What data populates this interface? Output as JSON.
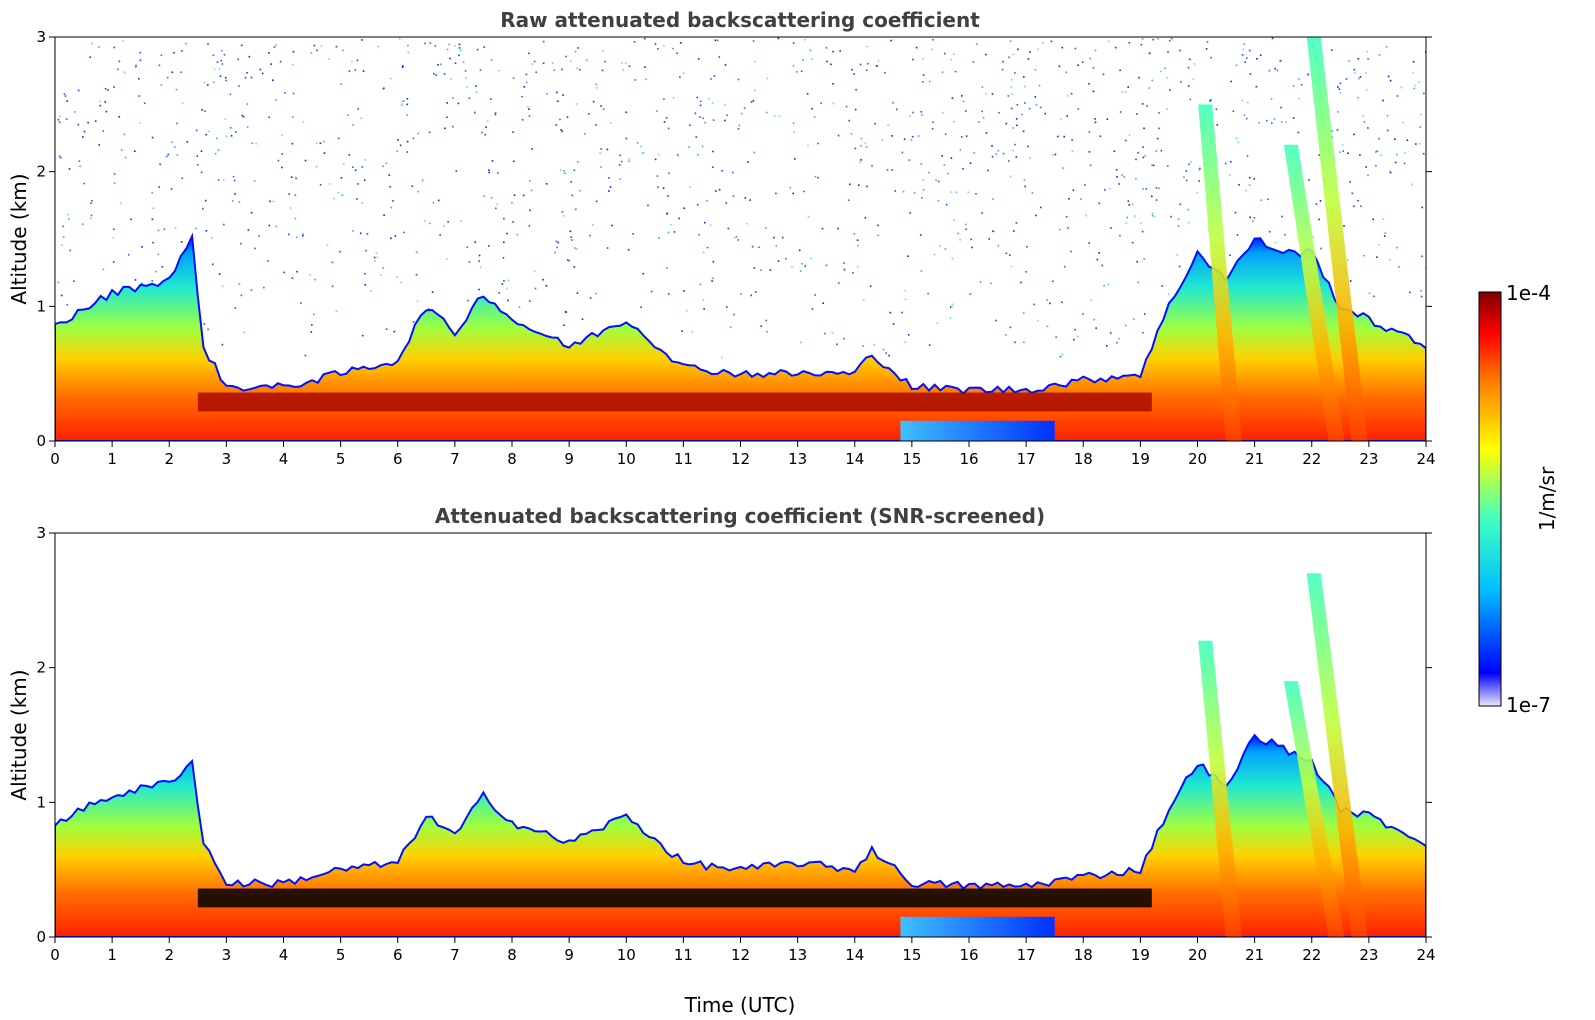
{
  "chart_data": [
    {
      "type": "heatmap",
      "title": "Raw attenuated backscattering coefficient",
      "xlabel": "",
      "ylabel": "Altitude (km)",
      "xlim": [
        0,
        24
      ],
      "ylim": [
        0,
        3
      ],
      "xticks": [
        "0",
        "1",
        "2",
        "3",
        "4",
        "5",
        "6",
        "7",
        "8",
        "9",
        "10",
        "11",
        "12",
        "13",
        "14",
        "15",
        "16",
        "17",
        "18",
        "19",
        "20",
        "21",
        "22",
        "23",
        "24"
      ],
      "yticks": [
        "0",
        "1",
        "2",
        "3"
      ],
      "screened": false,
      "cloud_top_km": {
        "time_utc": [
          0,
          1,
          2,
          2.4,
          2.6,
          3,
          4,
          5,
          6,
          6.5,
          7,
          7.5,
          8,
          9,
          10,
          11,
          12,
          13,
          14,
          14.3,
          15,
          16,
          17,
          18,
          19,
          19.5,
          20,
          20.5,
          21,
          21.5,
          22,
          22.5,
          23,
          24
        ],
        "altitude_km": [
          0.85,
          1.1,
          1.2,
          1.5,
          0.7,
          0.4,
          0.4,
          0.5,
          0.6,
          1.0,
          0.8,
          1.1,
          0.9,
          0.7,
          0.9,
          0.55,
          0.5,
          0.5,
          0.5,
          0.65,
          0.4,
          0.38,
          0.38,
          0.45,
          0.5,
          1.0,
          1.4,
          1.2,
          1.5,
          1.4,
          1.4,
          1.0,
          0.9,
          0.7
        ]
      },
      "dense_layer_km": {
        "start_utc": 2.5,
        "end_utc": 19.2,
        "altitude_km": 0.3
      },
      "low_signal_region": {
        "start_utc": 14.8,
        "end_utc": 17.5,
        "altitude_km": [
          0.0,
          0.15
        ]
      },
      "fall_streaks": [
        {
          "top_utc": 20.1,
          "bottom_utc": 20.6,
          "top_km": 2.5
        },
        {
          "top_utc": 21.6,
          "bottom_utc": 22.4,
          "top_km": 2.2
        },
        {
          "top_utc": 22.0,
          "bottom_utc": 22.8,
          "top_km": 3.0
        }
      ]
    },
    {
      "type": "heatmap",
      "title": "Attenuated backscattering coefficient (SNR-screened)",
      "xlabel": "Time (UTC)",
      "ylabel": "Altitude (km)",
      "xlim": [
        0,
        24
      ],
      "ylim": [
        0,
        3
      ],
      "xticks": [
        "0",
        "1",
        "2",
        "3",
        "4",
        "5",
        "6",
        "7",
        "8",
        "9",
        "10",
        "11",
        "12",
        "13",
        "14",
        "15",
        "16",
        "17",
        "18",
        "19",
        "20",
        "21",
        "22",
        "23",
        "24"
      ],
      "yticks": [
        "0",
        "1",
        "2",
        "3"
      ],
      "screened": true,
      "cloud_top_km": {
        "time_utc": [
          0,
          1,
          2,
          2.4,
          2.6,
          3,
          4,
          5,
          6,
          6.5,
          7,
          7.5,
          8,
          9,
          10,
          11,
          12,
          13,
          14,
          14.3,
          15,
          16,
          17,
          18,
          19,
          19.5,
          20,
          20.5,
          21,
          21.5,
          22,
          22.5,
          23,
          24
        ],
        "altitude_km": [
          0.85,
          1.05,
          1.15,
          1.3,
          0.7,
          0.4,
          0.4,
          0.5,
          0.55,
          0.9,
          0.75,
          1.05,
          0.85,
          0.7,
          0.9,
          0.55,
          0.5,
          0.55,
          0.5,
          0.65,
          0.4,
          0.38,
          0.38,
          0.45,
          0.5,
          0.95,
          1.3,
          1.1,
          1.5,
          1.4,
          1.3,
          0.95,
          0.9,
          0.7
        ]
      },
      "dense_layer_km": {
        "start_utc": 2.5,
        "end_utc": 19.2,
        "altitude_km": 0.3
      },
      "low_signal_region": {
        "start_utc": 14.8,
        "end_utc": 17.5,
        "altitude_km": [
          0.0,
          0.15
        ]
      },
      "fall_streaks": [
        {
          "top_utc": 20.1,
          "bottom_utc": 20.6,
          "top_km": 2.2
        },
        {
          "top_utc": 21.6,
          "bottom_utc": 22.4,
          "top_km": 1.9
        },
        {
          "top_utc": 22.0,
          "bottom_utc": 22.8,
          "top_km": 2.7
        }
      ]
    }
  ],
  "colorbar": {
    "label": "1/m/sr",
    "max_label": "1e-4",
    "min_label": "1e-7",
    "range": [
      1e-07,
      0.0001
    ],
    "scale": "log",
    "colors": [
      "#e8e8f8",
      "#0000ff",
      "#00bfff",
      "#40ffbf",
      "#ffff00",
      "#ff8000",
      "#ff0000",
      "#800000"
    ],
    "screened_out_color": "#000000"
  }
}
